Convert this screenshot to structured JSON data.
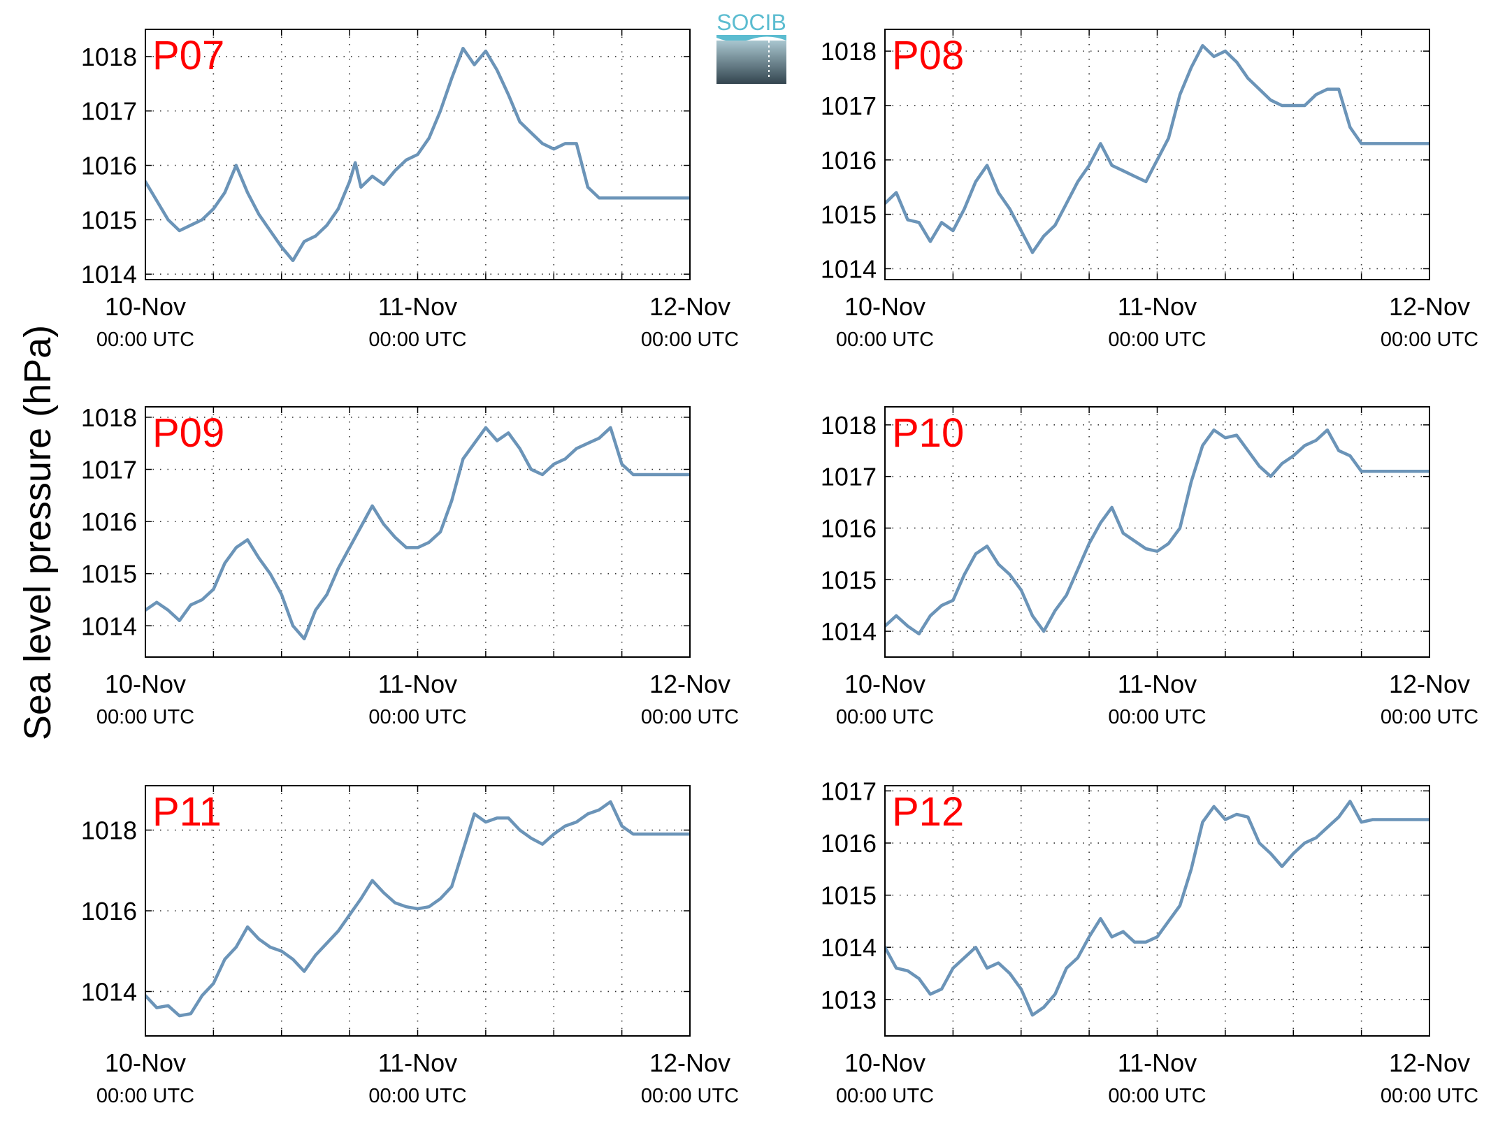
{
  "figure": {
    "ylabel": "Sea level pressure (hPa)",
    "logo_text": "SOCIB",
    "x_tick_labels": [
      {
        "date": "10-Nov",
        "time": "00:00 UTC"
      },
      {
        "date": "11-Nov",
        "time": "00:00 UTC"
      },
      {
        "date": "12-Nov",
        "time": "00:00 UTC"
      }
    ],
    "colors": {
      "line": "#6b94b8",
      "panel_label": "#ff0000",
      "logo_top": "#5bbcd0",
      "logo_bottom": "#33454f"
    }
  },
  "chart_data": [
    {
      "type": "line",
      "title": "P07",
      "x_range": [
        "10-Nov 00:00",
        "12-Nov 00:00"
      ],
      "xlim_hours": [
        0,
        48
      ],
      "ylim": [
        1013.9,
        1018.5
      ],
      "yticks": [
        1014,
        1015,
        1016,
        1017,
        1018
      ],
      "grid": "dotted",
      "x_hours": [
        0,
        2,
        3,
        4,
        5,
        6,
        7,
        8,
        9,
        10,
        11,
        12,
        13,
        14,
        15,
        16,
        17,
        18,
        18.5,
        19,
        20,
        21,
        22,
        23,
        24,
        25,
        26,
        27,
        28,
        29,
        30,
        31,
        32,
        33,
        34,
        35,
        36,
        37,
        38,
        39,
        40,
        41,
        42,
        43,
        44,
        45,
        46,
        47,
        48
      ],
      "values": [
        1015.7,
        1015.0,
        1014.8,
        1014.9,
        1015.0,
        1015.2,
        1015.5,
        1016.0,
        1015.5,
        1015.1,
        1014.8,
        1014.5,
        1014.25,
        1014.6,
        1014.7,
        1014.9,
        1015.2,
        1015.7,
        1016.05,
        1015.6,
        1015.8,
        1015.65,
        1015.9,
        1016.1,
        1016.2,
        1016.5,
        1017.0,
        1017.6,
        1018.15,
        1017.85,
        1018.1,
        1017.75,
        1017.3,
        1016.8,
        1016.6,
        1016.4,
        1016.3,
        1016.4,
        1016.4,
        1015.6,
        1015.4,
        1015.4,
        1015.4,
        1015.4,
        1015.4,
        1015.4,
        1015.4,
        1015.4,
        1015.4
      ]
    },
    {
      "type": "line",
      "title": "P08",
      "x_range": [
        "10-Nov 00:00",
        "12-Nov 00:00"
      ],
      "xlim_hours": [
        0,
        48
      ],
      "ylim": [
        1013.8,
        1018.4
      ],
      "yticks": [
        1014,
        1015,
        1016,
        1017,
        1018
      ],
      "grid": "dotted",
      "x_hours": [
        0,
        1,
        2,
        3,
        4,
        5,
        6,
        7,
        8,
        9,
        10,
        11,
        12,
        13,
        14,
        15,
        16,
        17,
        18,
        19,
        20,
        21,
        22,
        23,
        24,
        25,
        26,
        27,
        28,
        29,
        30,
        31,
        32,
        33,
        34,
        35,
        36,
        37,
        38,
        39,
        40,
        41,
        42,
        43,
        44,
        45,
        46,
        47,
        48
      ],
      "values": [
        1015.2,
        1015.4,
        1014.9,
        1014.85,
        1014.5,
        1014.85,
        1014.7,
        1015.1,
        1015.6,
        1015.9,
        1015.4,
        1015.1,
        1014.7,
        1014.3,
        1014.6,
        1014.8,
        1015.2,
        1015.6,
        1015.9,
        1016.3,
        1015.9,
        1015.8,
        1015.7,
        1015.6,
        1016.0,
        1016.4,
        1017.2,
        1017.7,
        1018.1,
        1017.9,
        1018.0,
        1017.8,
        1017.5,
        1017.3,
        1017.1,
        1017.0,
        1017.0,
        1017.0,
        1017.2,
        1017.3,
        1017.3,
        1016.6,
        1016.3,
        1016.3,
        1016.3,
        1016.3,
        1016.3,
        1016.3,
        1016.3
      ]
    },
    {
      "type": "line",
      "title": "P09",
      "x_range": [
        "10-Nov 00:00",
        "12-Nov 00:00"
      ],
      "xlim_hours": [
        0,
        48
      ],
      "ylim": [
        1013.4,
        1018.2
      ],
      "yticks": [
        1014,
        1015,
        1016,
        1017,
        1018
      ],
      "grid": "dotted",
      "x_hours": [
        0,
        1,
        2,
        3,
        4,
        5,
        6,
        7,
        8,
        9,
        10,
        11,
        12,
        13,
        14,
        15,
        16,
        17,
        18,
        19,
        20,
        21,
        22,
        23,
        24,
        25,
        26,
        27,
        28,
        29,
        30,
        31,
        32,
        33,
        34,
        35,
        36,
        37,
        38,
        39,
        40,
        41,
        42,
        43,
        44,
        45,
        46,
        47,
        48
      ],
      "values": [
        1014.3,
        1014.45,
        1014.3,
        1014.1,
        1014.4,
        1014.5,
        1014.7,
        1015.2,
        1015.5,
        1015.65,
        1015.3,
        1015.0,
        1014.6,
        1014.0,
        1013.75,
        1014.3,
        1014.6,
        1015.1,
        1015.5,
        1015.9,
        1016.3,
        1015.95,
        1015.7,
        1015.5,
        1015.5,
        1015.6,
        1015.8,
        1016.4,
        1017.2,
        1017.5,
        1017.8,
        1017.55,
        1017.7,
        1017.4,
        1017.0,
        1016.9,
        1017.1,
        1017.2,
        1017.4,
        1017.5,
        1017.6,
        1017.8,
        1017.1,
        1016.9,
        1016.9,
        1016.9,
        1016.9,
        1016.9,
        1016.9
      ]
    },
    {
      "type": "line",
      "title": "P10",
      "x_range": [
        "10-Nov 00:00",
        "12-Nov 00:00"
      ],
      "xlim_hours": [
        0,
        48
      ],
      "ylim": [
        1013.5,
        1018.35
      ],
      "yticks": [
        1014,
        1015,
        1016,
        1017,
        1018
      ],
      "grid": "dotted",
      "x_hours": [
        0,
        1,
        2,
        3,
        4,
        5,
        6,
        7,
        8,
        9,
        10,
        11,
        12,
        13,
        14,
        15,
        16,
        17,
        18,
        19,
        20,
        21,
        22,
        23,
        24,
        25,
        26,
        27,
        28,
        29,
        30,
        31,
        32,
        33,
        34,
        35,
        36,
        37,
        38,
        39,
        40,
        41,
        42,
        43,
        44,
        45,
        46,
        47,
        48
      ],
      "values": [
        1014.1,
        1014.3,
        1014.1,
        1013.95,
        1014.3,
        1014.5,
        1014.6,
        1015.1,
        1015.5,
        1015.65,
        1015.3,
        1015.1,
        1014.8,
        1014.3,
        1014.0,
        1014.4,
        1014.7,
        1015.2,
        1015.7,
        1016.1,
        1016.4,
        1015.9,
        1015.75,
        1015.6,
        1015.55,
        1015.7,
        1016.0,
        1016.9,
        1017.6,
        1017.9,
        1017.75,
        1017.8,
        1017.5,
        1017.2,
        1017.0,
        1017.25,
        1017.4,
        1017.6,
        1017.7,
        1017.9,
        1017.5,
        1017.4,
        1017.1,
        1017.1,
        1017.1,
        1017.1,
        1017.1,
        1017.1,
        1017.1
      ]
    },
    {
      "type": "line",
      "title": "P11",
      "x_range": [
        "10-Nov 00:00",
        "12-Nov 00:00"
      ],
      "xlim_hours": [
        0,
        48
      ],
      "ylim": [
        1012.9,
        1019.1
      ],
      "yticks": [
        1014,
        1016,
        1018
      ],
      "grid": "dotted",
      "x_hours": [
        0,
        1,
        2,
        3,
        4,
        5,
        6,
        7,
        8,
        9,
        10,
        11,
        12,
        13,
        14,
        15,
        16,
        17,
        18,
        19,
        20,
        21,
        22,
        23,
        24,
        25,
        26,
        27,
        28,
        29,
        30,
        31,
        32,
        33,
        34,
        35,
        36,
        37,
        38,
        39,
        40,
        41,
        42,
        43,
        44,
        45,
        46,
        47,
        48
      ],
      "values": [
        1013.9,
        1013.6,
        1013.65,
        1013.4,
        1013.45,
        1013.9,
        1014.2,
        1014.8,
        1015.1,
        1015.6,
        1015.3,
        1015.1,
        1015.0,
        1014.8,
        1014.5,
        1014.9,
        1015.2,
        1015.5,
        1015.9,
        1016.3,
        1016.75,
        1016.45,
        1016.2,
        1016.1,
        1016.05,
        1016.1,
        1016.3,
        1016.6,
        1017.5,
        1018.4,
        1018.2,
        1018.3,
        1018.3,
        1018.0,
        1017.8,
        1017.65,
        1017.9,
        1018.1,
        1018.2,
        1018.4,
        1018.5,
        1018.7,
        1018.1,
        1017.9,
        1017.9,
        1017.9,
        1017.9,
        1017.9,
        1017.9
      ]
    },
    {
      "type": "line",
      "title": "P12",
      "x_range": [
        "10-Nov 00:00",
        "12-Nov 00:00"
      ],
      "xlim_hours": [
        0,
        48
      ],
      "ylim": [
        1012.3,
        1017.1
      ],
      "yticks": [
        1013,
        1014,
        1015,
        1016,
        1017
      ],
      "grid": "dotted",
      "x_hours": [
        0,
        1,
        2,
        3,
        4,
        5,
        6,
        7,
        8,
        9,
        10,
        11,
        12,
        13,
        14,
        15,
        16,
        17,
        18,
        19,
        20,
        21,
        22,
        23,
        24,
        25,
        26,
        27,
        28,
        29,
        30,
        31,
        32,
        33,
        34,
        35,
        36,
        37,
        38,
        39,
        40,
        41,
        42,
        43,
        44,
        45,
        46,
        47,
        48
      ],
      "values": [
        1014.0,
        1013.6,
        1013.55,
        1013.4,
        1013.1,
        1013.2,
        1013.6,
        1013.8,
        1014.0,
        1013.6,
        1013.7,
        1013.5,
        1013.2,
        1012.7,
        1012.85,
        1013.1,
        1013.6,
        1013.8,
        1014.2,
        1014.55,
        1014.2,
        1014.3,
        1014.1,
        1014.1,
        1014.2,
        1014.5,
        1014.8,
        1015.5,
        1016.4,
        1016.7,
        1016.45,
        1016.55,
        1016.5,
        1016.0,
        1015.8,
        1015.55,
        1015.8,
        1016.0,
        1016.1,
        1016.3,
        1016.5,
        1016.8,
        1016.4,
        1016.45,
        1016.45,
        1016.45,
        1016.45,
        1016.45,
        1016.45
      ]
    }
  ]
}
